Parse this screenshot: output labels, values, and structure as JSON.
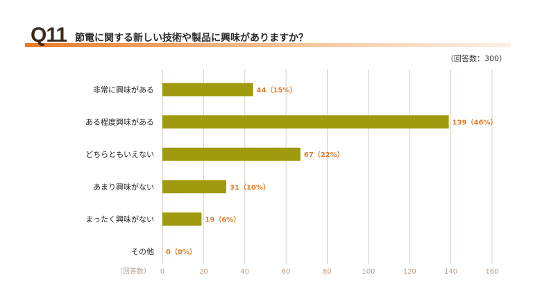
{
  "question": {
    "number": "Q11",
    "text": "節電に関する新しい技術や製品に興味がありますか？"
  },
  "respondents_note": "（回答数：300）",
  "colors": {
    "bar": "#a09b0e",
    "value": "#e07b2a",
    "grid": "#d8cfc4",
    "accent": "#e87a28"
  },
  "chart_data": {
    "type": "bar",
    "orientation": "horizontal",
    "title": "節電に関する新しい技術や製品に興味がありますか？",
    "categories": [
      "非常に興味がある",
      "ある程度興味がある",
      "どちらともいえない",
      "あまり興味がない",
      "まったく興味がない",
      "その他"
    ],
    "values": [
      44,
      139,
      67,
      31,
      19,
      0
    ],
    "value_labels": [
      "44（15%）",
      "139（46%）",
      "67（22%）",
      "31（10%）",
      "19（6%）",
      "0（0%）"
    ],
    "xlabel": "（回答数）",
    "xlim": [
      0,
      160
    ],
    "xticks": [
      0,
      20,
      40,
      60,
      80,
      100,
      120,
      140,
      160
    ],
    "grid": true
  }
}
